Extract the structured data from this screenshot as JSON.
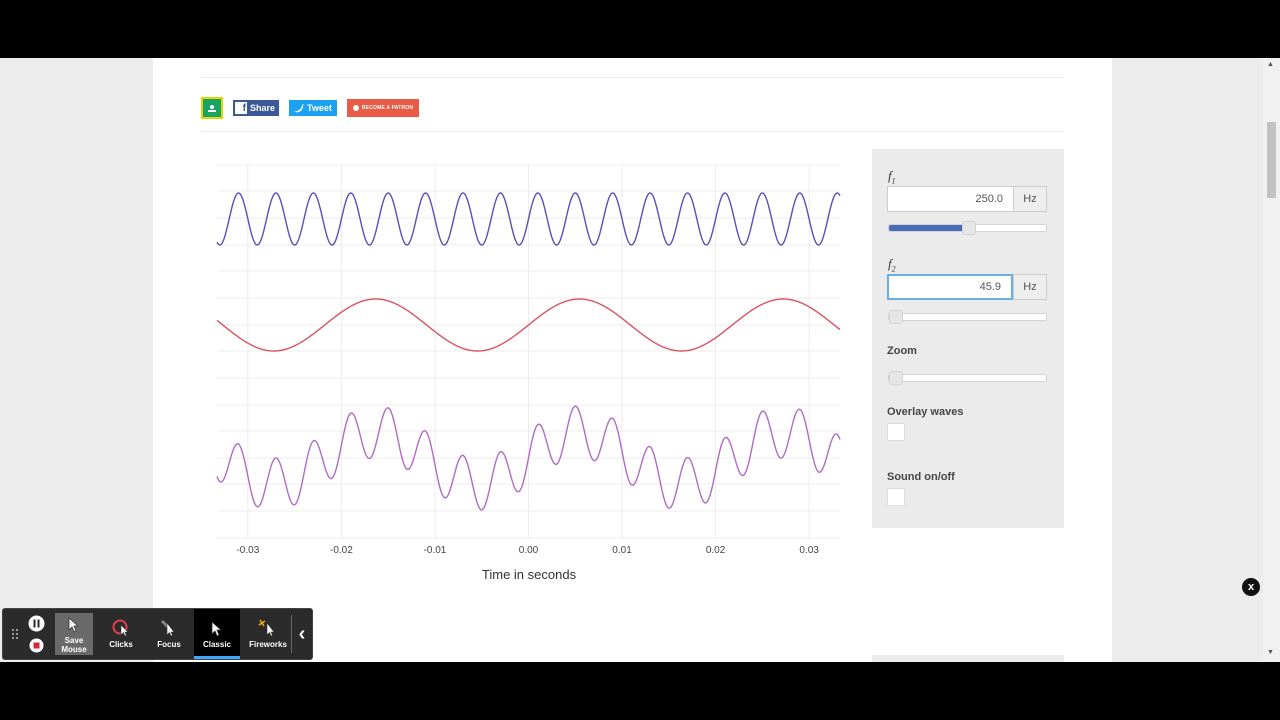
{
  "social": {
    "share_label": "Share",
    "fb_glyph": "f",
    "tweet_label": "Tweet",
    "patron_label": "BECOME A PATRON",
    "icons": [
      "google-classroom-icon",
      "facebook-icon",
      "twitter-icon",
      "patreon-icon"
    ]
  },
  "chart_data": {
    "type": "line",
    "xlabel": "Time in seconds",
    "ylabel": "",
    "xlim": [
      -0.0333,
      0.0333
    ],
    "x_ticks": [
      "-0.03",
      "-0.02",
      "-0.01",
      "0.00",
      "0.01",
      "0.02",
      "0.03"
    ],
    "grid": true,
    "series": [
      {
        "color": "#5a4fb8",
        "frequency_hz": 250.0,
        "amplitude": 1,
        "panel": 1
      },
      {
        "color": "#d9535f",
        "frequency_hz": 45.9,
        "amplitude": 1,
        "panel": 2
      },
      {
        "color": "#b06bc4",
        "components_hz": [
          250.0,
          45.9
        ],
        "panel": 3
      }
    ]
  },
  "controls": {
    "f1": {
      "symbol": "f",
      "index": "1",
      "value": "250.0",
      "unit": "Hz",
      "slider_fraction": 0.5
    },
    "f2": {
      "symbol": "f",
      "index": "2",
      "value": "45.9",
      "unit": "Hz",
      "slider_fraction": 0.03
    },
    "zoom": {
      "label": "Zoom",
      "slider_fraction": 0.03
    },
    "overlay": {
      "label": "Overlay waves",
      "checked": false
    },
    "sound": {
      "label": "Sound on/off",
      "checked": false
    }
  },
  "colors": {
    "f1_slider": "#4a6cb8",
    "f2_slider": "#c2101e",
    "zoom_slider": "#3ec995"
  },
  "close_label": "x",
  "recorder_toolbar": {
    "items": [
      {
        "label": "Save Mouse",
        "icon": "cursor-icon",
        "active": false
      },
      {
        "label": "Clicks",
        "icon": "click-circle-icon",
        "active": false
      },
      {
        "label": "Focus",
        "icon": "focus-cursor-icon",
        "active": false
      },
      {
        "label": "Classic",
        "icon": "cursor-icon",
        "active": true
      },
      {
        "label": "Fireworks",
        "icon": "fireworks-icon",
        "active": false
      }
    ],
    "collapse_glyph": "‹",
    "accent": "#3ea8ff"
  }
}
